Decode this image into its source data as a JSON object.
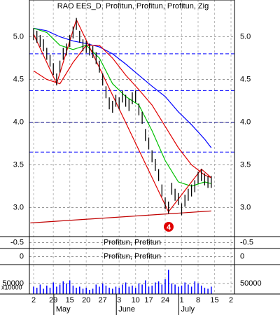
{
  "chart_data": [
    {
      "type": "ohlc",
      "title": "RAO EES_D, Profitun, Profitun, Profitun, Zig",
      "ylim": [
        2.66,
        5.43
      ],
      "yticks": [
        {
          "value": 3,
          "label": "3.0"
        },
        {
          "value": 3.5,
          "label": "3.5"
        },
        {
          "value": 4,
          "label": "4.0"
        },
        {
          "value": 4.5,
          "label": "4.5"
        },
        {
          "value": 5,
          "label": "5.0"
        }
      ],
      "grid": true,
      "bar_color": "#000000",
      "high": [
        5.1,
        5.07,
        5.02,
        4.97,
        4.87,
        4.79,
        4.69,
        4.57,
        4.72,
        4.87,
        4.92,
        5.02,
        5.12,
        5.22,
        5.07,
        4.97,
        4.95,
        4.92,
        4.89,
        4.82,
        4.72,
        4.57,
        4.42,
        4.29,
        4.25,
        4.32,
        4.29,
        4.37,
        4.32,
        4.27,
        4.35,
        4.37,
        4.22,
        4.12,
        3.92,
        3.82,
        3.67,
        3.57,
        3.45,
        3.27,
        3.12,
        3.07,
        3.29,
        3.22,
        3.17,
        3.05,
        3.15,
        3.22,
        3.27,
        3.32,
        3.42,
        3.45,
        3.4,
        3.37,
        3.37,
        null,
        null,
        null,
        null,
        null,
        null
      ],
      "low": [
        4.96,
        4.93,
        4.88,
        4.83,
        4.73,
        4.65,
        4.55,
        4.43,
        4.58,
        4.73,
        4.78,
        4.88,
        4.98,
        5.08,
        4.93,
        4.83,
        4.81,
        4.78,
        4.75,
        4.68,
        4.58,
        4.43,
        4.28,
        4.15,
        4.11,
        4.18,
        4.15,
        4.23,
        4.18,
        4.13,
        4.21,
        4.23,
        4.08,
        3.98,
        3.78,
        3.68,
        3.53,
        3.43,
        3.31,
        3.13,
        2.98,
        2.93,
        3.15,
        3.08,
        3.03,
        2.91,
        3.01,
        3.08,
        3.13,
        3.18,
        3.28,
        3.31,
        3.26,
        3.23,
        3.23,
        null,
        null,
        null,
        null,
        null,
        null
      ],
      "lines": [
        {
          "color": "#0000ff",
          "x": [
            0,
            4,
            8,
            12,
            16,
            20,
            24,
            28,
            32,
            36,
            40,
            44,
            48,
            52,
            54
          ],
          "values": [
            5.1,
            5.07,
            5.0,
            4.95,
            4.92,
            4.88,
            4.8,
            4.68,
            4.55,
            4.42,
            4.3,
            4.12,
            3.97,
            3.8,
            3.7
          ]
        },
        {
          "color": "#e00000",
          "x": [
            0,
            4,
            8,
            12,
            16,
            20,
            24,
            28,
            32,
            36,
            40,
            44,
            48,
            52,
            54
          ],
          "values": [
            4.6,
            4.5,
            4.45,
            4.7,
            4.9,
            4.9,
            4.75,
            4.55,
            4.38,
            4.2,
            3.95,
            3.7,
            3.5,
            3.38,
            3.35
          ]
        },
        {
          "color": "#00c000",
          "x": [
            0,
            4,
            8,
            12,
            16,
            20,
            24,
            28,
            32,
            36,
            40,
            44,
            48,
            52,
            54
          ],
          "values": [
            5.1,
            5.05,
            4.9,
            4.85,
            4.9,
            4.75,
            4.45,
            4.3,
            4.2,
            3.9,
            3.55,
            3.3,
            3.25,
            3.3,
            3.28
          ]
        },
        {
          "color": "#e00000",
          "x": [
            0,
            7,
            13,
            41,
            51,
            54
          ],
          "values": [
            5.03,
            4.45,
            5.2,
            2.95,
            3.45,
            3.35
          ]
        },
        {
          "color": "#c00000",
          "x": [
            -1,
            54
          ],
          "values": [
            2.82,
            2.96
          ]
        }
      ],
      "levels": [
        {
          "value": 4.8,
          "color": "#0000ff"
        },
        {
          "value": 4.37,
          "color": "#0000ff"
        },
        {
          "value": 4,
          "color": "#000080"
        },
        {
          "value": 3.65,
          "color": "#0000ff"
        }
      ],
      "annotation": "4"
    },
    {
      "type": "oscillator",
      "title": "Profitun, Profitun",
      "ylim": [
        -1,
        0
      ],
      "yticks": [
        -0.5
      ]
    },
    {
      "type": "oscillator",
      "title": "Profitun, Profitun",
      "ylim": [
        -1,
        1
      ],
      "yticks": [
        0
      ]
    },
    {
      "type": "bar",
      "color": "#0000ff",
      "ylim": [
        0,
        140000
      ],
      "yticks": [
        50000
      ],
      "unit": "x10000",
      "categories": [
        "2",
        null,
        null,
        null,
        null,
        null,
        "29",
        null,
        null,
        null,
        null,
        "15",
        null,
        null,
        null,
        null,
        "20",
        null,
        null,
        null,
        null,
        "27",
        null,
        null,
        null,
        null,
        "3",
        null,
        null,
        null,
        null,
        "10",
        null,
        null,
        null,
        "17",
        null,
        null,
        null,
        null,
        "24",
        null,
        null,
        null,
        null,
        "1",
        null,
        null,
        null,
        null,
        "8",
        null,
        null,
        null,
        null,
        "15",
        null,
        null,
        null,
        null,
        "2"
      ],
      "values": [
        35000,
        30000,
        45000,
        25000,
        40000,
        30000,
        55000,
        35000,
        45000,
        60000,
        50000,
        65000,
        40000,
        30000,
        35000,
        25000,
        30000,
        20000,
        25000,
        45000,
        35000,
        50000,
        40000,
        30000,
        25000,
        35000,
        30000,
        45000,
        55000,
        35000,
        40000,
        30000,
        50000,
        45000,
        65000,
        35000,
        40000,
        55000,
        60000,
        45000,
        70000,
        115000,
        50000,
        45000,
        35000,
        40000,
        55000,
        45000,
        35000,
        60000,
        50000,
        40000,
        30000,
        25000,
        35000,
        null,
        null,
        null,
        null,
        null,
        null
      ],
      "months": [
        "May",
        "June",
        "July"
      ]
    }
  ]
}
